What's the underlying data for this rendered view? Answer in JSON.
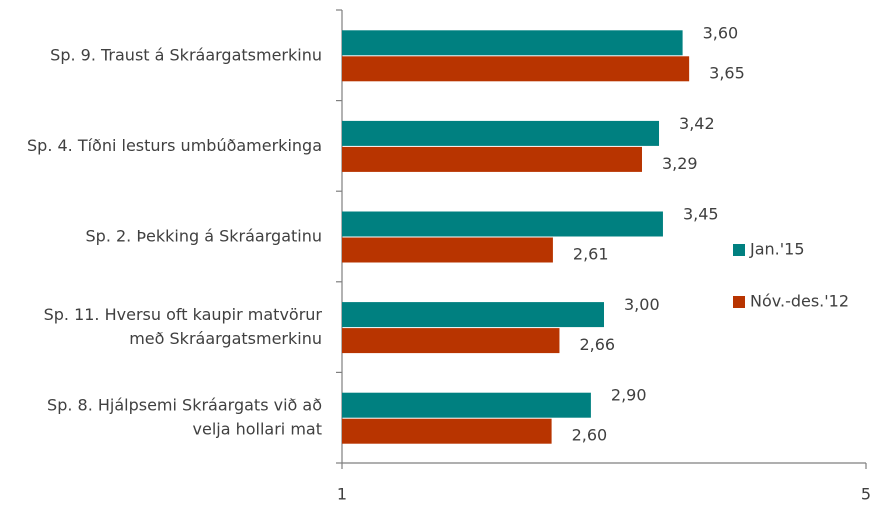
{
  "chart_data": {
    "type": "bar",
    "orientation": "horizontal",
    "categories": [
      [
        "Sp. 9. Traust á Skráargatsmerkinu"
      ],
      [
        "Sp. 4. Tíðni lesturs umbúðamerkinga"
      ],
      [
        "Sp. 2. Þekking á Skráargatinu"
      ],
      [
        "Sp. 11. Hversu oft kaupir matvörur",
        "með Skráargatsmerkinu"
      ],
      [
        "Sp. 8. Hjálpsemi Skráargats við að",
        "velja hollari mat"
      ]
    ],
    "series": [
      {
        "name": "Jan.'15",
        "color": "#008080",
        "values": [
          3.6,
          3.42,
          3.45,
          3.0,
          2.9
        ],
        "value_labels": [
          "3,60",
          "3,42",
          "3,45",
          "3,00",
          "2,90"
        ]
      },
      {
        "name": "Nóv.-des.'12",
        "color": "#b83400",
        "values": [
          3.65,
          3.29,
          2.61,
          2.66,
          2.6
        ],
        "value_labels": [
          "3,65",
          "3,29",
          "2,61",
          "2,66",
          "2,60"
        ]
      }
    ],
    "xlim": [
      1,
      5
    ],
    "xticks": [
      1,
      5
    ],
    "legend": "right"
  }
}
